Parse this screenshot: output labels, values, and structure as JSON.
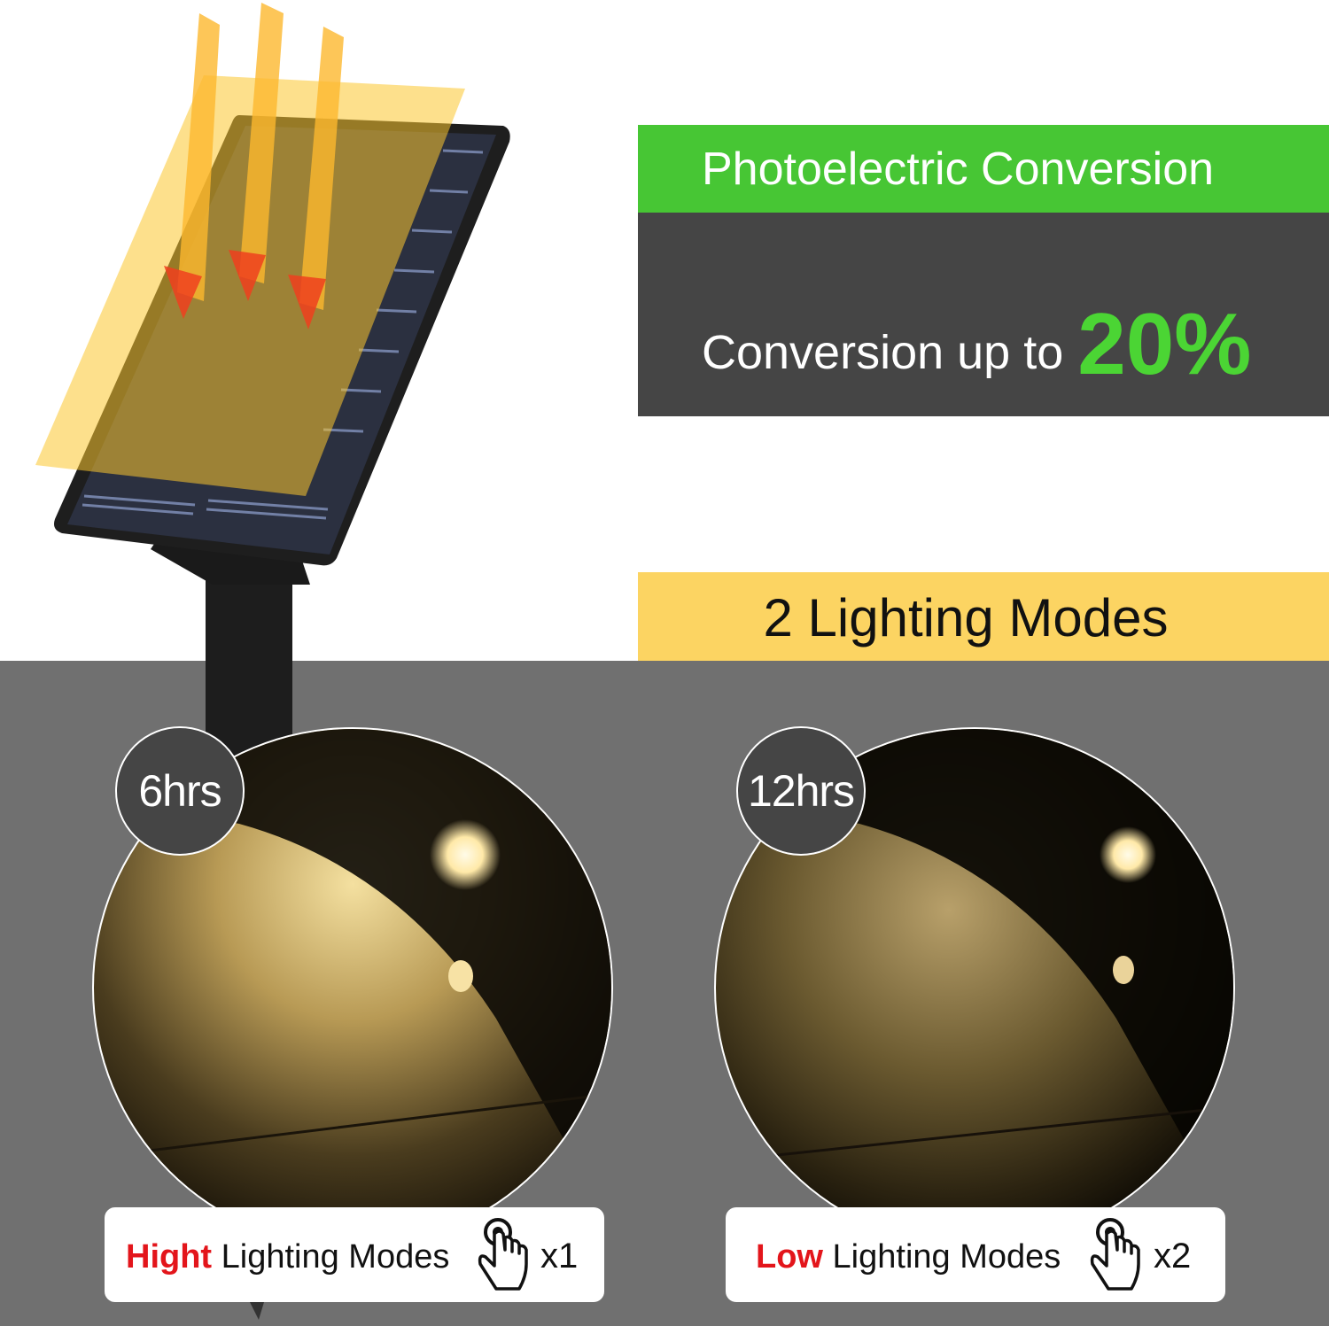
{
  "conversion": {
    "banner_title": "Photoelectric Conversion",
    "prefix": "Conversion up to",
    "value": "20%"
  },
  "modes": {
    "title": "2 Lighting Modes",
    "items": [
      {
        "duration": "6hrs",
        "highlight": "Hight",
        "label": "Lighting Modes",
        "press_count": "x1",
        "icon": "hand-tap-icon"
      },
      {
        "duration": "12hrs",
        "highlight": "Low",
        "label": "Lighting Modes",
        "press_count": "x2",
        "icon": "hand-tap-icon"
      }
    ]
  },
  "colors": {
    "green": "#47c634",
    "dark": "#454545",
    "yellow": "#fcd462",
    "gray": "#707070",
    "red": "#e3151b"
  }
}
